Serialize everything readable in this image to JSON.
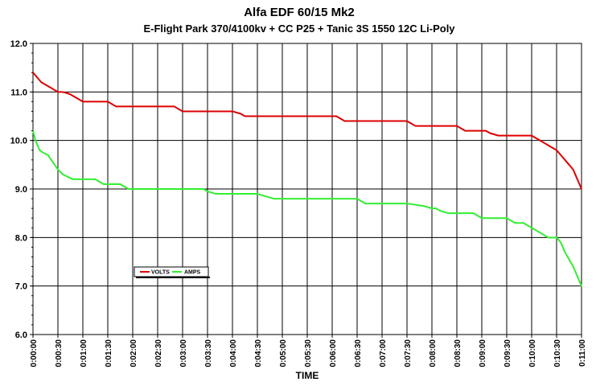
{
  "chart_data": {
    "type": "line",
    "title": "Alfa EDF 60/15 Mk2",
    "subtitle": "E-Flight Park 370/4100kv +  CC P25 + Tanic 3S 1550 12C Li-Poly",
    "xlabel": "TIME",
    "ylabel": "",
    "ylim": [
      6.0,
      12.0
    ],
    "xlim_seconds": [
      0,
      660
    ],
    "grid": true,
    "legend_position": "center-left",
    "y_ticks": [
      "6.0",
      "7.0",
      "8.0",
      "9.0",
      "10.0",
      "11.0",
      "12.0"
    ],
    "x_ticks": [
      "0:00:00",
      "0:00:30",
      "0:01:00",
      "0:01:30",
      "0:02:00",
      "0:02:30",
      "0:03:00",
      "0:03:30",
      "0:04:00",
      "0:04:30",
      "0:05:00",
      "0:05:30",
      "0:06:00",
      "0:06:30",
      "0:07:00",
      "0:07:30",
      "0:08:00",
      "0:08:30",
      "0:09:00",
      "0:09:30",
      "0:10:00",
      "0:10:30",
      "0:11:00"
    ],
    "series": [
      {
        "name": "VOLTS",
        "color": "#dd0000",
        "x": [
          "0:00:00",
          "0:00:05",
          "0:00:10",
          "0:00:15",
          "0:00:20",
          "0:00:25",
          "0:00:30",
          "0:00:35",
          "0:00:40",
          "0:00:45",
          "0:00:50",
          "0:00:55",
          "0:01:00",
          "0:01:20",
          "0:01:30",
          "0:01:35",
          "0:01:40",
          "0:02:00",
          "0:02:30",
          "0:02:50",
          "0:03:00",
          "0:03:05",
          "0:03:30",
          "0:04:00",
          "0:04:10",
          "0:04:15",
          "0:04:30",
          "0:05:00",
          "0:05:30",
          "0:06:00",
          "0:06:05",
          "0:06:10",
          "0:06:15",
          "0:06:30",
          "0:07:00",
          "0:07:30",
          "0:07:35",
          "0:07:40",
          "0:08:00",
          "0:08:30",
          "0:08:35",
          "0:08:40",
          "0:09:00",
          "0:09:05",
          "0:09:10",
          "0:09:20",
          "0:09:25",
          "0:09:30",
          "0:10:00",
          "0:10:05",
          "0:10:10",
          "0:10:15",
          "0:10:20",
          "0:10:25",
          "0:10:30",
          "0:10:35",
          "0:10:40",
          "0:10:45",
          "0:10:50",
          "0:10:55",
          "0:11:00"
        ],
        "values": [
          11.4,
          11.3,
          11.2,
          11.15,
          11.1,
          11.05,
          11.0,
          11.0,
          10.98,
          10.95,
          10.9,
          10.85,
          10.8,
          10.8,
          10.8,
          10.75,
          10.7,
          10.7,
          10.7,
          10.7,
          10.6,
          10.6,
          10.6,
          10.6,
          10.55,
          10.5,
          10.5,
          10.5,
          10.5,
          10.5,
          10.5,
          10.45,
          10.4,
          10.4,
          10.4,
          10.4,
          10.35,
          10.3,
          10.3,
          10.3,
          10.25,
          10.2,
          10.2,
          10.2,
          10.15,
          10.1,
          10.1,
          10.1,
          10.1,
          10.05,
          10.0,
          9.95,
          9.9,
          9.85,
          9.8,
          9.7,
          9.6,
          9.5,
          9.4,
          9.2,
          9.0
        ]
      },
      {
        "name": "AMPS",
        "color": "#33ee33",
        "x": [
          "0:00:00",
          "0:00:03",
          "0:00:08",
          "0:00:12",
          "0:00:18",
          "0:00:24",
          "0:00:30",
          "0:00:36",
          "0:00:42",
          "0:00:48",
          "0:00:54",
          "0:01:00",
          "0:01:15",
          "0:01:20",
          "0:01:25",
          "0:01:30",
          "0:01:45",
          "0:01:50",
          "0:01:55",
          "0:02:00",
          "0:02:30",
          "0:03:00",
          "0:03:25",
          "0:03:30",
          "0:03:40",
          "0:04:00",
          "0:04:30",
          "0:04:40",
          "0:04:50",
          "0:05:00",
          "0:05:30",
          "0:06:00",
          "0:06:30",
          "0:06:35",
          "0:06:40",
          "0:07:00",
          "0:07:30",
          "0:07:50",
          "0:08:00",
          "0:08:05",
          "0:08:10",
          "0:08:20",
          "0:08:30",
          "0:08:50",
          "0:09:00",
          "0:09:30",
          "0:09:35",
          "0:09:40",
          "0:09:50",
          "0:10:00",
          "0:10:05",
          "0:10:10",
          "0:10:15",
          "0:10:20",
          "0:10:25",
          "0:10:30",
          "0:10:35",
          "0:10:40",
          "0:10:45",
          "0:10:50",
          "0:10:55",
          "0:11:00"
        ],
        "values": [
          10.2,
          10.0,
          9.8,
          9.75,
          9.7,
          9.55,
          9.4,
          9.3,
          9.25,
          9.2,
          9.2,
          9.2,
          9.2,
          9.15,
          9.1,
          9.1,
          9.1,
          9.05,
          9.0,
          9.0,
          9.0,
          9.0,
          9.0,
          8.95,
          8.9,
          8.9,
          8.9,
          8.85,
          8.8,
          8.8,
          8.8,
          8.8,
          8.8,
          8.75,
          8.7,
          8.7,
          8.7,
          8.65,
          8.6,
          8.6,
          8.55,
          8.5,
          8.5,
          8.5,
          8.4,
          8.4,
          8.35,
          8.3,
          8.3,
          8.2,
          8.15,
          8.1,
          8.05,
          8.0,
          8.0,
          8.0,
          7.9,
          7.7,
          7.55,
          7.4,
          7.2,
          7.0
        ]
      }
    ]
  }
}
